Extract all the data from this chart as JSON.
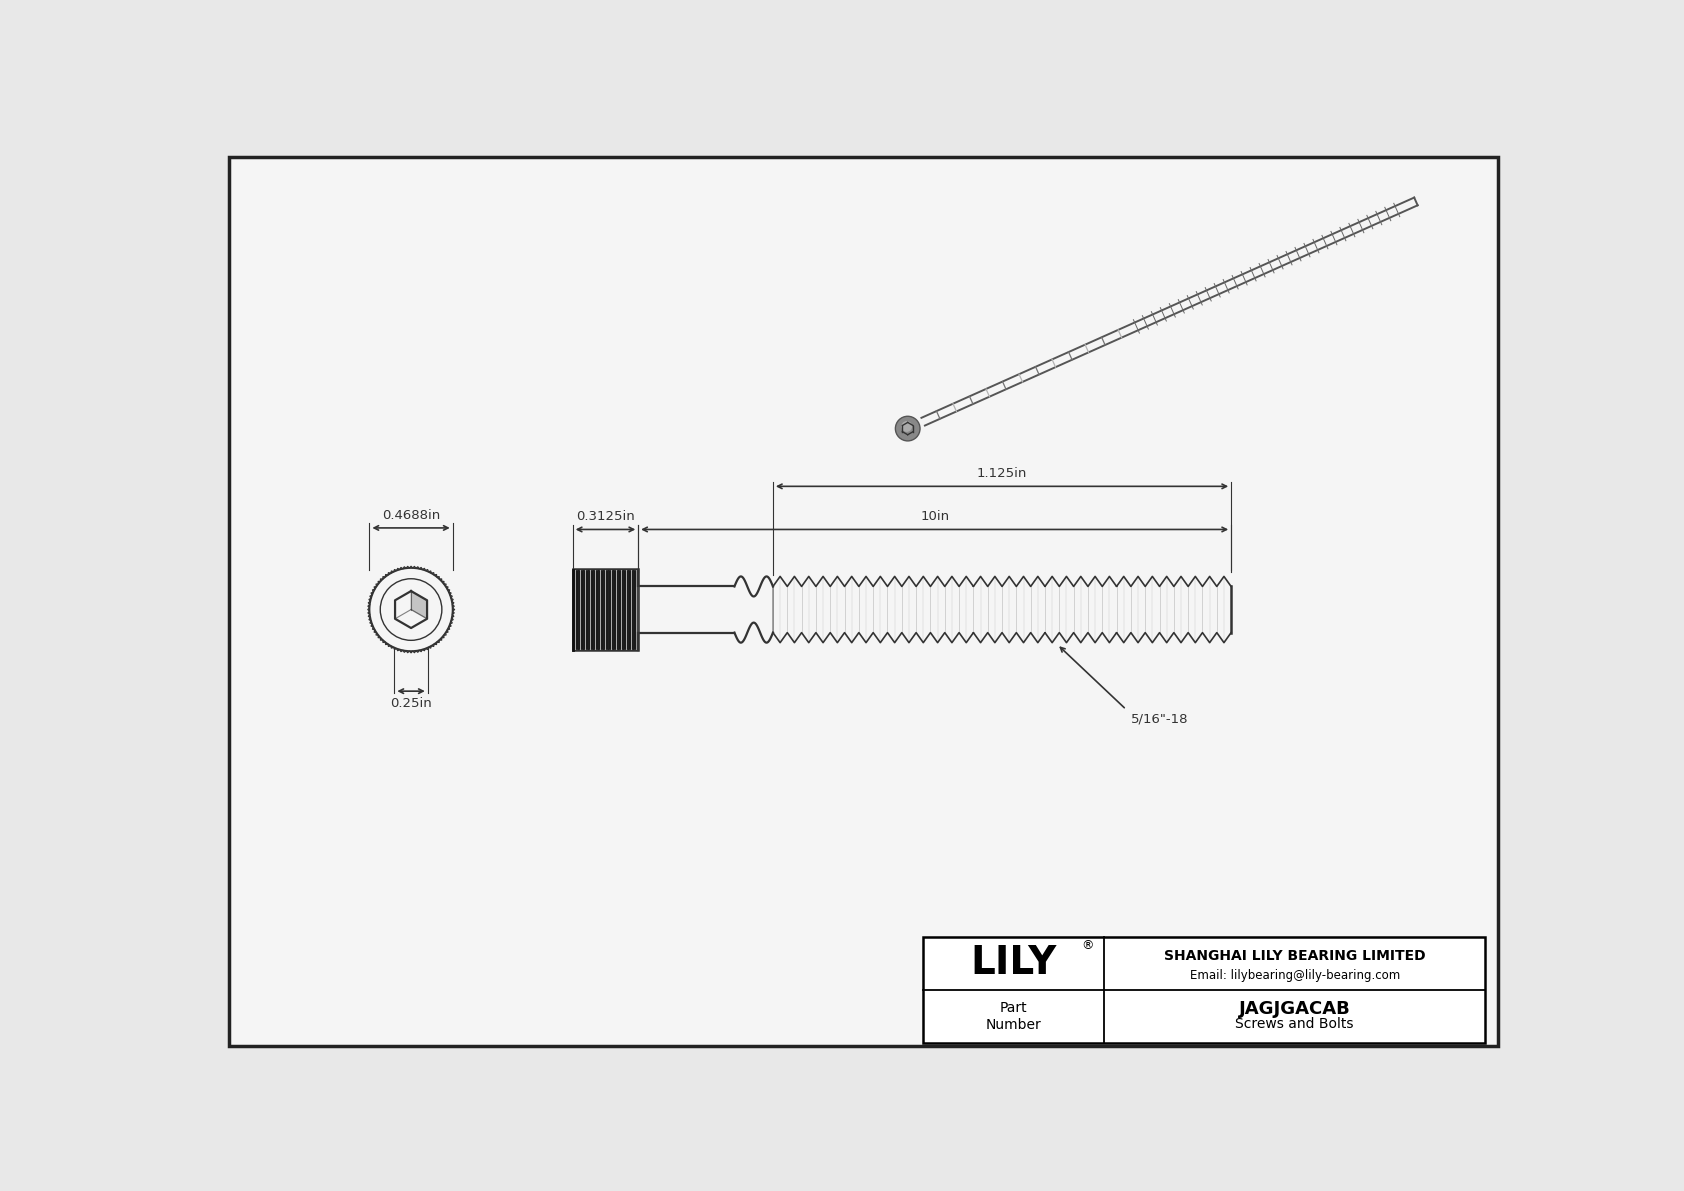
{
  "bg_color": "#e8e8e8",
  "drawing_bg": "#f5f5f5",
  "border_color": "#222222",
  "line_color": "#333333",
  "dim_color": "#333333",
  "title": "JAGJGACAB",
  "subtitle": "Screws and Bolts",
  "company": "SHANGHAI LILY BEARING LIMITED",
  "email": "Email: lilybearing@lily-bearing.com",
  "part_label": "Part\nNumber",
  "logo": "LILY",
  "dim_head_width": "0.4688in",
  "dim_socket_depth": "0.25in",
  "dim_head_height": "0.3125in",
  "dim_total_length": "10in",
  "dim_thread_length": "1.125in",
  "dim_thread_label": "5/16\"-18"
}
